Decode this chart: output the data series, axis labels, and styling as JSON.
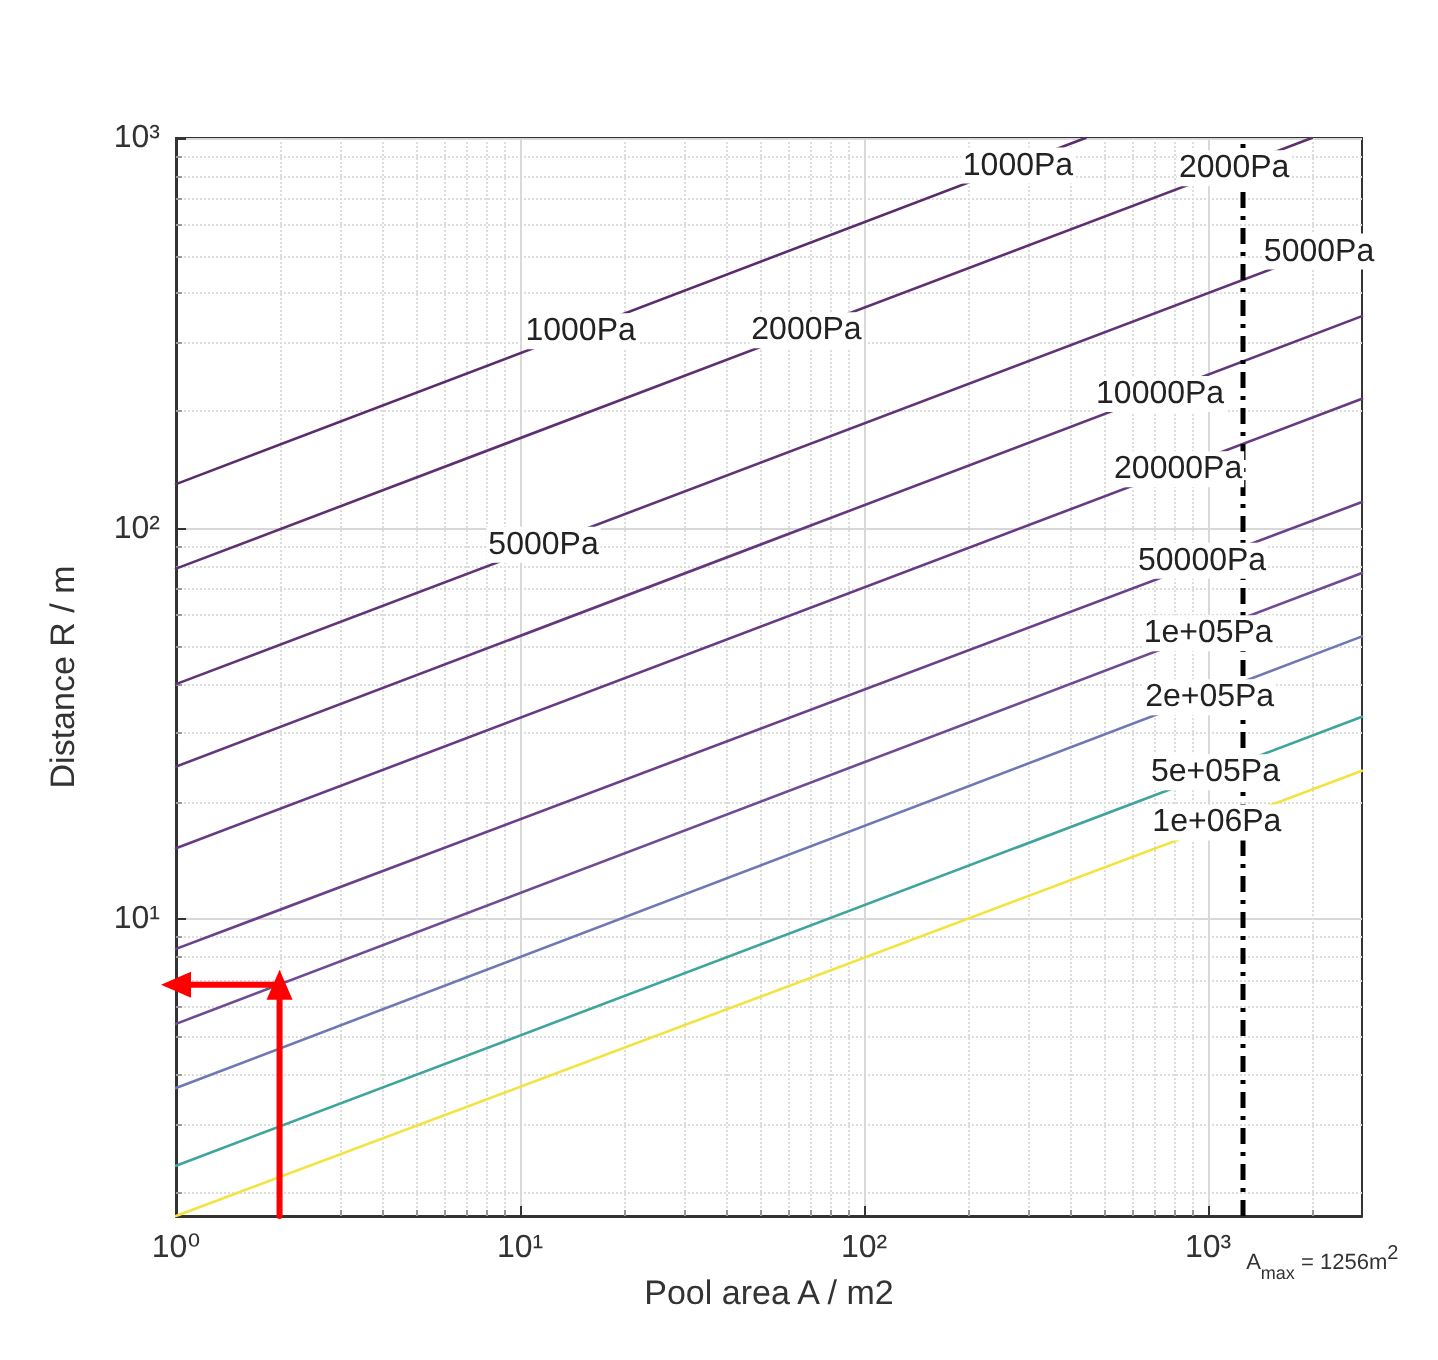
{
  "chart_data": {
    "type": "line",
    "xlabel": "Pool area A / m2",
    "ylabel": "Distance R / m",
    "log": "xy",
    "grid": true,
    "marker": "none",
    "line_style": "solid",
    "xlim": [
      1,
      2800
    ],
    "ylim": [
      1.74,
      1000
    ],
    "xticks": [
      {
        "value": 1,
        "label": "10⁰"
      },
      {
        "value": 10,
        "label": "10¹"
      },
      {
        "value": 100,
        "label": "10²"
      },
      {
        "value": 1000,
        "label": "10³"
      }
    ],
    "yticks": [
      {
        "value": 10,
        "label": "10¹"
      },
      {
        "value": 100,
        "label": "10²"
      },
      {
        "value": 1000,
        "label": "10³"
      }
    ],
    "series": [
      {
        "color": "#5a2c6b",
        "x": [
          1,
          440
        ],
        "values": [
          130,
          1000
        ]
      },
      {
        "color": "#5e2f71",
        "x": [
          1,
          2000
        ],
        "values": [
          79,
          1000
        ]
      },
      {
        "color": "#613377",
        "x": [
          1,
          2800
        ],
        "values": [
          40,
          565
        ]
      },
      {
        "color": "#64377d",
        "x": [
          1,
          2800
        ],
        "values": [
          24.6,
          350
        ]
      },
      {
        "color": "#673b84",
        "x": [
          1,
          2800
        ],
        "values": [
          15.2,
          215
        ]
      },
      {
        "color": "#6a408a",
        "x": [
          1,
          2800
        ],
        "values": [
          8.4,
          117
        ]
      },
      {
        "color": "#6e4b93",
        "x": [
          1,
          2800
        ],
        "values": [
          5.4,
          77
        ]
      },
      {
        "color": "#6f78b5",
        "x": [
          1,
          2800
        ],
        "values": [
          3.7,
          53
        ]
      },
      {
        "color": "#3fa59c",
        "x": [
          1,
          2800
        ],
        "values": [
          2.34,
          33
        ]
      },
      {
        "color": "#f2e33f",
        "x": [
          1,
          2800
        ],
        "values": [
          1.74,
          24
        ]
      },
      {
        "color": "#ff0000",
        "x": [
          2,
          2,
          1
        ],
        "values": [
          1.74,
          6.8,
          6.8
        ],
        "marker": "triangle"
      }
    ],
    "ref_lines": [
      {
        "axis": "x",
        "value": 1256,
        "label": "A$_{max}$ = 1256m$^{2}$",
        "color": "#000000",
        "line_style": "dashdot"
      }
    ],
    "annotations": [
      {
        "text": "1000Pa",
        "x": 15,
        "y": 320
      },
      {
        "text": "5000Pa",
        "x": 11.7,
        "y": 91
      },
      {
        "text": "2000Pa",
        "x": 68,
        "y": 322
      },
      {
        "text": "1000Pa",
        "x": 280,
        "y": 850
      },
      {
        "text": "2000Pa",
        "x": 1190,
        "y": 837
      },
      {
        "text": "5000Pa",
        "x": 2100,
        "y": 512
      },
      {
        "text": "10000Pa",
        "x": 725,
        "y": 221
      },
      {
        "text": "20000Pa",
        "x": 818,
        "y": 142
      },
      {
        "text": "50000Pa",
        "x": 960,
        "y": 82.8
      },
      {
        "text": "1e+05Pa",
        "x": 1000,
        "y": 54
      },
      {
        "text": "2e+05Pa",
        "x": 1010,
        "y": 37
      },
      {
        "text": "5e+05Pa",
        "x": 1050,
        "y": 23.8
      },
      {
        "text": "1e+06Pa",
        "x": 1060,
        "y": 17.7
      }
    ]
  }
}
